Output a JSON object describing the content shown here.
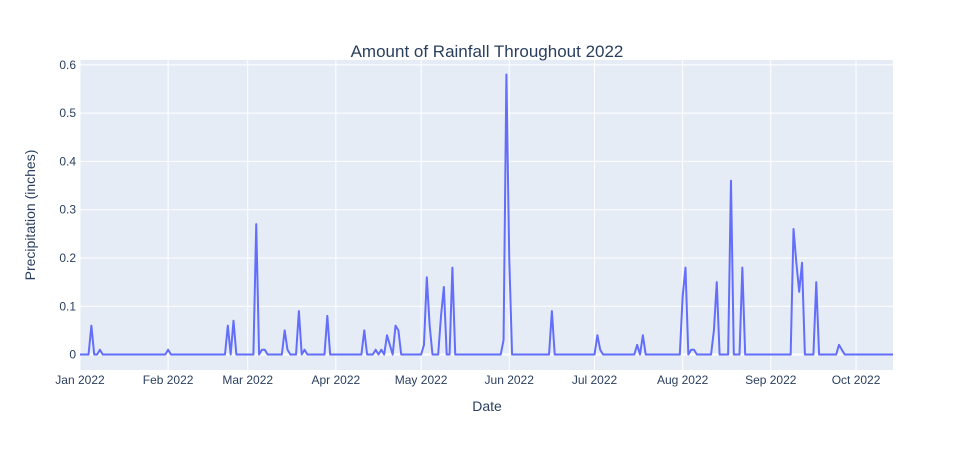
{
  "chart_data": {
    "type": "line",
    "title": "Amount of Rainfall Throughout 2022",
    "xlabel": "Date",
    "ylabel": "Precipitation (inches)",
    "x_ticks": [
      "Jan 2022",
      "Feb 2022",
      "Mar 2022",
      "Apr 2022",
      "May 2022",
      "Jun 2022",
      "Jul 2022",
      "Aug 2022",
      "Sep 2022",
      "Oct 2022"
    ],
    "y_ticks": [
      "0",
      "0.1",
      "0.2",
      "0.3",
      "0.4",
      "0.5",
      "0.6"
    ],
    "xlim": [
      "2022-01-01",
      "2022-10-14"
    ],
    "ylim": [
      -0.032,
      0.61
    ],
    "grid": true,
    "line_color": "#636efa",
    "background_color": "#e5ecf6",
    "series": [
      {
        "points": [
          [
            "2022-01-01",
            0
          ],
          [
            "2022-01-04",
            0
          ],
          [
            "2022-01-05",
            0.06
          ],
          [
            "2022-01-06",
            0
          ],
          [
            "2022-01-07",
            0
          ],
          [
            "2022-01-08",
            0.01
          ],
          [
            "2022-01-09",
            0
          ],
          [
            "2022-01-31",
            0
          ],
          [
            "2022-02-01",
            0.01
          ],
          [
            "2022-02-02",
            0
          ],
          [
            "2022-02-21",
            0
          ],
          [
            "2022-02-22",
            0.06
          ],
          [
            "2022-02-23",
            0
          ],
          [
            "2022-02-24",
            0.07
          ],
          [
            "2022-02-25",
            0
          ],
          [
            "2022-03-03",
            0
          ],
          [
            "2022-03-04",
            0.27
          ],
          [
            "2022-03-05",
            0
          ],
          [
            "2022-03-06",
            0.01
          ],
          [
            "2022-03-07",
            0.01
          ],
          [
            "2022-03-08",
            0
          ],
          [
            "2022-03-13",
            0
          ],
          [
            "2022-03-14",
            0.05
          ],
          [
            "2022-03-15",
            0.01
          ],
          [
            "2022-03-16",
            0
          ],
          [
            "2022-03-18",
            0
          ],
          [
            "2022-03-19",
            0.09
          ],
          [
            "2022-03-20",
            0
          ],
          [
            "2022-03-21",
            0.01
          ],
          [
            "2022-03-22",
            0
          ],
          [
            "2022-03-28",
            0
          ],
          [
            "2022-03-29",
            0.08
          ],
          [
            "2022-03-30",
            0
          ],
          [
            "2022-04-10",
            0
          ],
          [
            "2022-04-11",
            0.05
          ],
          [
            "2022-04-12",
            0
          ],
          [
            "2022-04-14",
            0
          ],
          [
            "2022-04-15",
            0.01
          ],
          [
            "2022-04-16",
            0
          ],
          [
            "2022-04-17",
            0.01
          ],
          [
            "2022-04-18",
            0
          ],
          [
            "2022-04-19",
            0.04
          ],
          [
            "2022-04-20",
            0.02
          ],
          [
            "2022-04-21",
            0
          ],
          [
            "2022-04-22",
            0.06
          ],
          [
            "2022-04-23",
            0.05
          ],
          [
            "2022-04-24",
            0
          ],
          [
            "2022-05-01",
            0
          ],
          [
            "2022-05-02",
            0.02
          ],
          [
            "2022-05-03",
            0.16
          ],
          [
            "2022-05-04",
            0.06
          ],
          [
            "2022-05-05",
            0
          ],
          [
            "2022-05-07",
            0
          ],
          [
            "2022-05-08",
            0.08
          ],
          [
            "2022-05-09",
            0.14
          ],
          [
            "2022-05-10",
            0
          ],
          [
            "2022-05-11",
            0
          ],
          [
            "2022-05-12",
            0.18
          ],
          [
            "2022-05-13",
            0
          ],
          [
            "2022-05-29",
            0
          ],
          [
            "2022-05-30",
            0.03
          ],
          [
            "2022-05-31",
            0.58
          ],
          [
            "2022-06-01",
            0.2
          ],
          [
            "2022-06-02",
            0
          ],
          [
            "2022-06-15",
            0
          ],
          [
            "2022-06-16",
            0.09
          ],
          [
            "2022-06-17",
            0
          ],
          [
            "2022-07-01",
            0
          ],
          [
            "2022-07-02",
            0.04
          ],
          [
            "2022-07-03",
            0.01
          ],
          [
            "2022-07-04",
            0
          ],
          [
            "2022-07-15",
            0
          ],
          [
            "2022-07-16",
            0.02
          ],
          [
            "2022-07-17",
            0
          ],
          [
            "2022-07-18",
            0.04
          ],
          [
            "2022-07-19",
            0
          ],
          [
            "2022-07-31",
            0
          ],
          [
            "2022-08-01",
            0.12
          ],
          [
            "2022-08-02",
            0.18
          ],
          [
            "2022-08-03",
            0
          ],
          [
            "2022-08-04",
            0.01
          ],
          [
            "2022-08-05",
            0.01
          ],
          [
            "2022-08-06",
            0
          ],
          [
            "2022-08-11",
            0
          ],
          [
            "2022-08-12",
            0.05
          ],
          [
            "2022-08-13",
            0.15
          ],
          [
            "2022-08-14",
            0
          ],
          [
            "2022-08-17",
            0
          ],
          [
            "2022-08-18",
            0.36
          ],
          [
            "2022-08-19",
            0
          ],
          [
            "2022-08-21",
            0
          ],
          [
            "2022-08-22",
            0.18
          ],
          [
            "2022-08-23",
            0
          ],
          [
            "2022-09-08",
            0
          ],
          [
            "2022-09-09",
            0.26
          ],
          [
            "2022-09-10",
            0.19
          ],
          [
            "2022-09-11",
            0.13
          ],
          [
            "2022-09-12",
            0.19
          ],
          [
            "2022-09-13",
            0
          ],
          [
            "2022-09-16",
            0
          ],
          [
            "2022-09-17",
            0.15
          ],
          [
            "2022-09-18",
            0
          ],
          [
            "2022-09-24",
            0
          ],
          [
            "2022-09-25",
            0.02
          ],
          [
            "2022-09-26",
            0.01
          ],
          [
            "2022-09-27",
            0
          ],
          [
            "2022-10-14",
            0
          ]
        ]
      }
    ]
  }
}
